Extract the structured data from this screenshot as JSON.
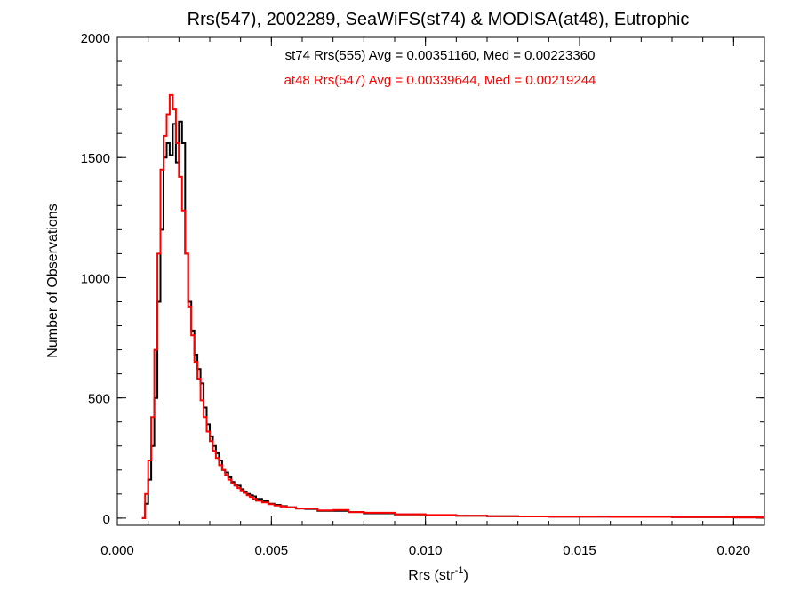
{
  "chart_data": {
    "type": "line",
    "title": "Rrs(547), 2002289, SeaWiFS(st74) & MODISA(at48), Eutrophic",
    "xlabel": "Rrs (str",
    "xlabel_sup": "-1",
    "xlabel_close": ")",
    "ylabel": "Number of Observations",
    "xlim": [
      0.0,
      0.021
    ],
    "ylim": [
      -30,
      2000
    ],
    "x_ticks": [
      0.0,
      0.005,
      0.01,
      0.015,
      0.02
    ],
    "x_tick_labels": [
      "0.000",
      "0.005",
      "0.010",
      "0.015",
      "0.020"
    ],
    "y_ticks": [
      0,
      500,
      1000,
      1500,
      2000
    ],
    "y_tick_labels": [
      "0",
      "500",
      "1000",
      "1500",
      "2000"
    ],
    "grid": false,
    "annotations": [
      "st74 Rrs(555) Avg = 0.00351160, Med = 0.00223360",
      "at48 Rrs(547) Avg = 0.00339644, Med = 0.00219244"
    ],
    "series": [
      {
        "color": "#000000",
        "step": "histogram",
        "x": [
          0.0008,
          0.0009,
          0.001,
          0.0011,
          0.0012,
          0.0013,
          0.0014,
          0.0015,
          0.0016,
          0.0017,
          0.0018,
          0.0019,
          0.002,
          0.0021,
          0.0022,
          0.0023,
          0.0024,
          0.0025,
          0.0026,
          0.0027,
          0.0028,
          0.0029,
          0.003,
          0.0031,
          0.0032,
          0.0033,
          0.0034,
          0.0035,
          0.0036,
          0.0037,
          0.0038,
          0.0039,
          0.004,
          0.0041,
          0.0042,
          0.0043,
          0.0044,
          0.0045,
          0.0047,
          0.0049,
          0.0051,
          0.0053,
          0.0055,
          0.0058,
          0.0061,
          0.0065,
          0.007,
          0.0075,
          0.008,
          0.009,
          0.01,
          0.011,
          0.012,
          0.013,
          0.014,
          0.015,
          0.016,
          0.017,
          0.018,
          0.019,
          0.02,
          0.021
        ],
        "values": [
          0,
          60,
          160,
          300,
          500,
          900,
          1200,
          1500,
          1560,
          1510,
          1640,
          1480,
          1650,
          1560,
          1100,
          900,
          780,
          680,
          620,
          560,
          460,
          390,
          340,
          300,
          270,
          240,
          200,
          190,
          170,
          150,
          140,
          135,
          120,
          110,
          100,
          95,
          90,
          80,
          70,
          60,
          55,
          50,
          45,
          40,
          38,
          30,
          30,
          25,
          20,
          15,
          12,
          10,
          8,
          7,
          6,
          6,
          5,
          5,
          4,
          4,
          3,
          3
        ]
      },
      {
        "color": "#ff0000",
        "step": "histogram",
        "x": [
          0.0008,
          0.0009,
          0.001,
          0.0011,
          0.0012,
          0.0013,
          0.0014,
          0.0015,
          0.0016,
          0.0017,
          0.0018,
          0.0019,
          0.002,
          0.0021,
          0.0022,
          0.0023,
          0.0024,
          0.0025,
          0.0026,
          0.0027,
          0.0028,
          0.0029,
          0.003,
          0.0031,
          0.0032,
          0.0033,
          0.0034,
          0.0035,
          0.0036,
          0.0037,
          0.0038,
          0.0039,
          0.004,
          0.0041,
          0.0042,
          0.0043,
          0.0044,
          0.0045,
          0.0047,
          0.0049,
          0.0051,
          0.0053,
          0.0055,
          0.0058,
          0.0061,
          0.0065,
          0.007,
          0.0075,
          0.008,
          0.009,
          0.01,
          0.011,
          0.012,
          0.013,
          0.014,
          0.015,
          0.016,
          0.017,
          0.018,
          0.019,
          0.02,
          0.021
        ],
        "values": [
          0,
          100,
          240,
          420,
          700,
          1100,
          1450,
          1590,
          1680,
          1760,
          1700,
          1560,
          1420,
          1280,
          1100,
          880,
          760,
          650,
          580,
          490,
          420,
          360,
          320,
          280,
          250,
          220,
          200,
          180,
          160,
          145,
          135,
          125,
          115,
          105,
          95,
          88,
          80,
          72,
          65,
          58,
          52,
          48,
          45,
          40,
          40,
          32,
          34,
          25,
          22,
          16,
          13,
          10,
          8,
          7,
          6,
          6,
          5,
          5,
          4,
          4,
          3,
          3
        ]
      }
    ]
  }
}
